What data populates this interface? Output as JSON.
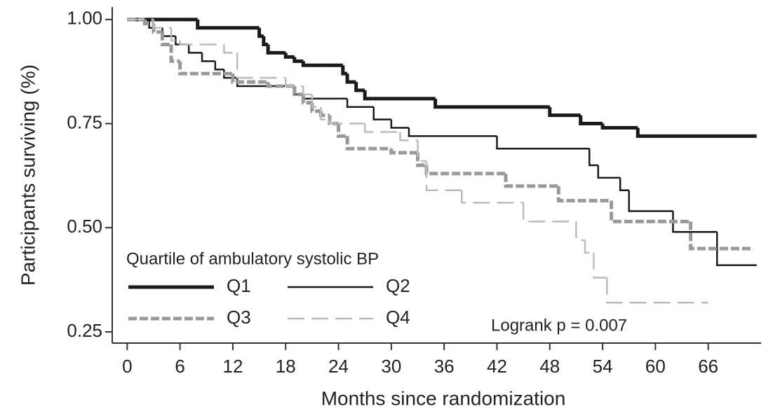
{
  "chart_data": {
    "type": "step",
    "xlabel": "Months since randomization",
    "ylabel": "Participants surviving (%)",
    "xlim": [
      -1.7,
      72
    ],
    "ylim": [
      0.223,
      1.03
    ],
    "xticks": [
      0,
      6,
      12,
      18,
      24,
      30,
      36,
      42,
      48,
      54,
      60,
      66
    ],
    "yticks": [
      {
        "value": 0.25,
        "label": "0.25"
      },
      {
        "value": 0.5,
        "label": "0.50"
      },
      {
        "value": 0.75,
        "label": "0.75"
      },
      {
        "value": 1,
        "label": "1.00"
      }
    ],
    "legend_title": "Quartile of ambulatory systolic BP",
    "annotation": "Logrank p = 0.007",
    "series": [
      {
        "name": "Q1",
        "color": "#1a1a1a",
        "linewidth": "thick",
        "linestyle": "solid",
        "x": [
          0,
          8,
          15,
          15.5,
          16,
          18,
          19,
          20,
          22,
          24.5,
          25,
          26,
          27,
          28,
          35,
          48,
          51.5,
          54,
          58,
          71.5
        ],
        "values": [
          1.0,
          0.98,
          0.96,
          0.94,
          0.92,
          0.91,
          0.9,
          0.89,
          0.89,
          0.87,
          0.85,
          0.83,
          0.81,
          0.81,
          0.79,
          0.77,
          0.75,
          0.74,
          0.72,
          0.72
        ]
      },
      {
        "name": "Q2",
        "color": "#1a1a1a",
        "linewidth": "thin",
        "linestyle": "solid",
        "x": [
          0,
          2.5,
          4,
          5.5,
          7,
          8.5,
          10,
          11,
          12.5,
          19,
          20,
          25,
          28,
          30,
          32,
          42,
          52.5,
          53.5,
          56,
          57,
          62,
          67,
          71.5
        ],
        "values": [
          1.0,
          0.98,
          0.96,
          0.94,
          0.92,
          0.9,
          0.88,
          0.86,
          0.84,
          0.82,
          0.81,
          0.79,
          0.76,
          0.74,
          0.72,
          0.69,
          0.65,
          0.62,
          0.59,
          0.54,
          0.49,
          0.41,
          0.41
        ]
      },
      {
        "name": "Q3",
        "color": "#999999",
        "linewidth": "thick",
        "linestyle": "dashed",
        "x": [
          0,
          2,
          3,
          4,
          5,
          6,
          12,
          16,
          19,
          20,
          21,
          22,
          23,
          24,
          25,
          30,
          33,
          34,
          43,
          49,
          55,
          64,
          71
        ],
        "values": [
          1.0,
          0.99,
          0.97,
          0.94,
          0.9,
          0.87,
          0.85,
          0.84,
          0.82,
          0.8,
          0.78,
          0.77,
          0.75,
          0.72,
          0.69,
          0.68,
          0.65,
          0.63,
          0.6,
          0.565,
          0.515,
          0.45,
          0.45
        ]
      },
      {
        "name": "Q4",
        "color": "#bbbbbb",
        "linewidth": "thin",
        "linestyle": "dashed",
        "x": [
          0,
          3,
          5,
          6,
          11,
          12.5,
          18,
          20,
          21,
          22,
          23,
          27,
          31,
          33,
          34,
          38,
          45,
          51,
          52,
          53,
          54.5,
          66
        ],
        "values": [
          1.0,
          0.98,
          0.95,
          0.94,
          0.92,
          0.86,
          0.84,
          0.82,
          0.79,
          0.76,
          0.75,
          0.73,
          0.71,
          0.66,
          0.59,
          0.56,
          0.515,
          0.47,
          0.44,
          0.38,
          0.32,
          0.32
        ]
      }
    ]
  }
}
